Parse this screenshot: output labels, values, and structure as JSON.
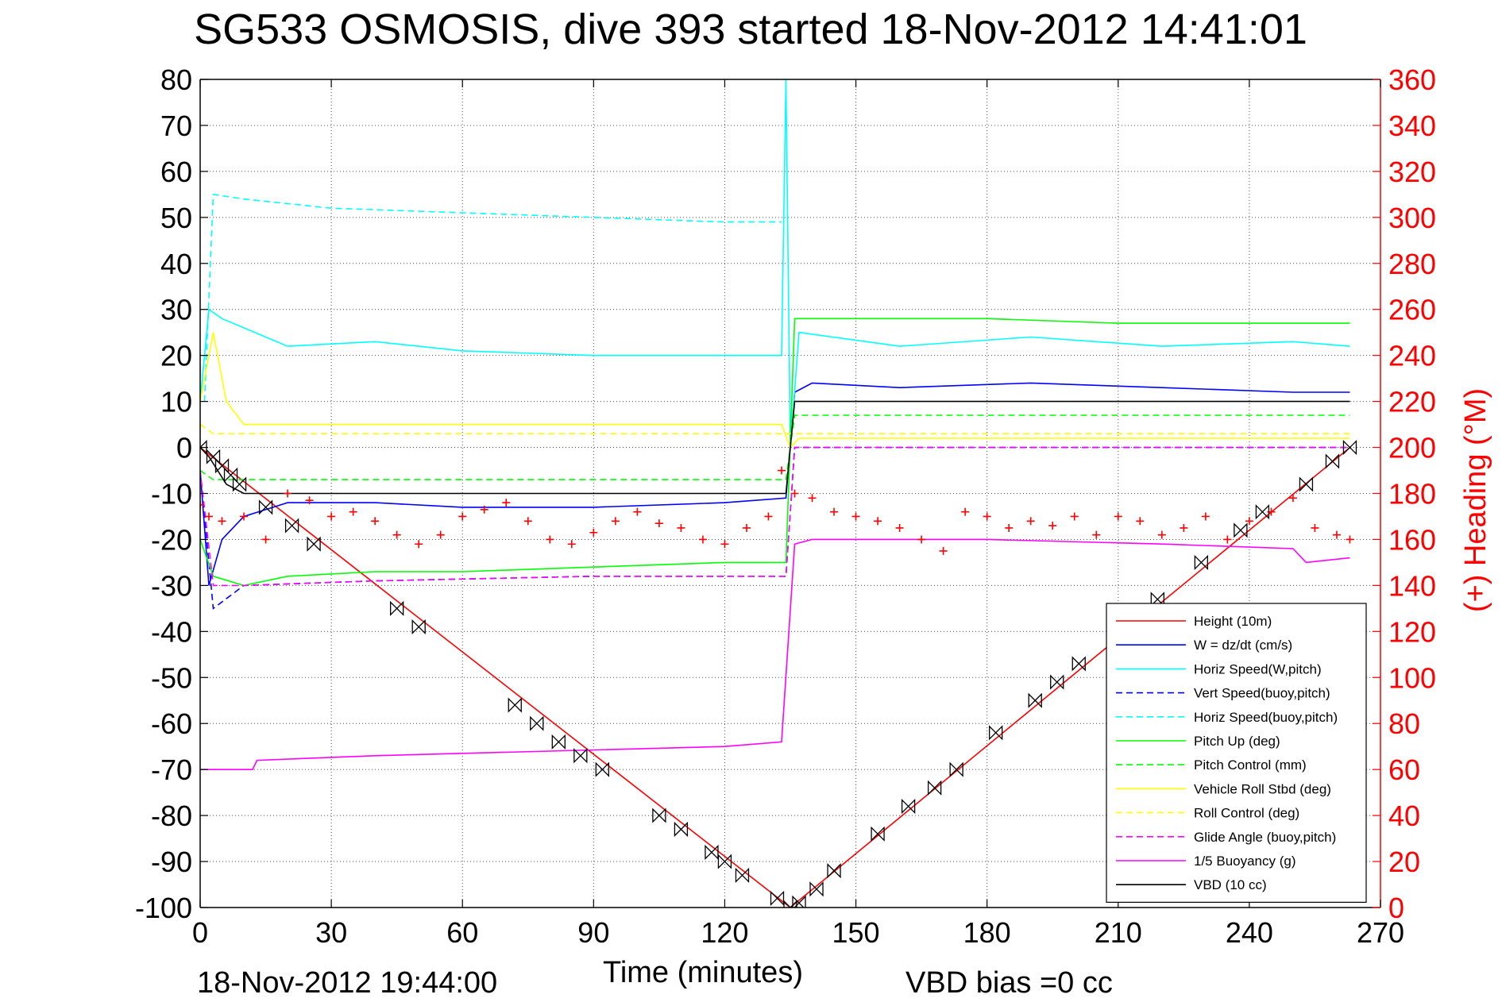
{
  "chart_data": {
    "type": "line",
    "title": "SG533 OSMOSIS, dive 393 started 18-Nov-2012 14:41:01",
    "xlabel": "Time (minutes)",
    "ylabel": "",
    "y2label": "(+) Heading (°M)",
    "xlim": [
      0,
      270
    ],
    "ylim": [
      -100,
      80
    ],
    "y2lim": [
      0,
      360
    ],
    "xticks": [
      "0",
      "30",
      "60",
      "90",
      "120",
      "150",
      "180",
      "210",
      "240",
      "270"
    ],
    "yticks": [
      "80",
      "70",
      "60",
      "50",
      "40",
      "30",
      "20",
      "10",
      "0",
      "-10",
      "-20",
      "-30",
      "-40",
      "-50",
      "-60",
      "-70",
      "-80",
      "-90",
      "-100"
    ],
    "y2ticks": [
      "360",
      "340",
      "320",
      "300",
      "280",
      "260",
      "240",
      "220",
      "200",
      "180",
      "160",
      "140",
      "120",
      "100",
      "80",
      "60",
      "40",
      "20",
      "0"
    ],
    "grid": true,
    "legend_position": "bottom-right",
    "footer_left": "18-Nov-2012 19:44:00",
    "footer_right": "VBD bias =0 cc",
    "colors": {
      "red": "#ff0000",
      "blue": "#0000ff",
      "cyan": "#00ffff",
      "green": "#00ff00",
      "yellow": "#ffff00",
      "magenta": "#ff00ff",
      "black": "#000000"
    },
    "series": [
      {
        "name": "Height (10m)",
        "color": "#ff0000",
        "style": "solid",
        "x": [
          0,
          135,
          263
        ],
        "y": [
          0,
          -100,
          0
        ]
      },
      {
        "name": "W = dz/dt (cm/s)",
        "color": "#0000ff",
        "style": "solid",
        "x": [
          0,
          2,
          5,
          10,
          20,
          40,
          60,
          90,
          120,
          134,
          136,
          140,
          160,
          190,
          220,
          250,
          263
        ],
        "y": [
          -5,
          -30,
          -20,
          -15,
          -12,
          -12,
          -13,
          -13,
          -12,
          -11,
          12,
          14,
          13,
          14,
          13,
          12,
          12
        ]
      },
      {
        "name": "Horiz Speed(W,pitch)",
        "color": "#00ffff",
        "style": "solid",
        "x": [
          0,
          2,
          5,
          10,
          20,
          40,
          60,
          90,
          120,
          133,
          134,
          135,
          137,
          160,
          190,
          220,
          250,
          263
        ],
        "y": [
          10,
          30,
          28,
          26,
          22,
          23,
          21,
          20,
          20,
          20,
          80,
          0,
          25,
          22,
          24,
          22,
          23,
          22
        ]
      },
      {
        "name": "Vert Speed(buoy,pitch)",
        "color": "#0000ff",
        "style": "dashed",
        "x": [
          0,
          3,
          10,
          40,
          90,
          134,
          136,
          263
        ],
        "y": [
          -5,
          -35,
          -30,
          -29,
          -28,
          -28,
          0,
          0
        ]
      },
      {
        "name": "Horiz Speed(buoy,pitch)",
        "color": "#00ffff",
        "style": "dashed",
        "x": [
          1,
          3,
          10,
          30,
          60,
          90,
          120,
          133
        ],
        "y": [
          10,
          55,
          54,
          52,
          51,
          50,
          49,
          49
        ]
      },
      {
        "name": "Pitch Up (deg)",
        "color": "#00ff00",
        "style": "solid",
        "x": [
          0,
          3,
          10,
          20,
          40,
          60,
          90,
          120,
          134,
          136,
          150,
          180,
          210,
          240,
          263
        ],
        "y": [
          -20,
          -28,
          -30,
          -28,
          -27,
          -27,
          -26,
          -25,
          -25,
          28,
          28,
          28,
          27,
          27,
          27
        ]
      },
      {
        "name": "Pitch Control (mm)",
        "color": "#00ff00",
        "style": "dashed",
        "x": [
          0,
          3,
          134,
          136,
          263
        ],
        "y": [
          -5,
          -7,
          -7,
          7,
          7
        ]
      },
      {
        "name": "Vehicle Roll Stbd (deg)",
        "color": "#ffff00",
        "style": "solid",
        "x": [
          0,
          3,
          6,
          10,
          15,
          20,
          40,
          60,
          90,
          120,
          133,
          135,
          137,
          150,
          180,
          210,
          240,
          263
        ],
        "y": [
          10,
          25,
          10,
          5,
          5,
          5,
          5,
          5,
          5,
          5,
          5,
          0,
          2,
          2,
          2,
          2,
          2,
          2
        ]
      },
      {
        "name": "Roll Control (deg)",
        "color": "#ffff00",
        "style": "dashed",
        "x": [
          0,
          3,
          134,
          136,
          263
        ],
        "y": [
          5,
          3,
          3,
          3,
          3
        ]
      },
      {
        "name": "Glide Angle (buoy,pitch)",
        "color": "#ff00ff",
        "style": "dashed",
        "x": [
          0,
          3,
          10,
          40,
          90,
          134,
          136,
          263
        ],
        "y": [
          -5,
          -30,
          -30,
          -29,
          -28,
          -28,
          0,
          0
        ]
      },
      {
        "name": "1/5 Buoyancy (g)",
        "color": "#ff00ff",
        "style": "solid",
        "x": [
          0,
          12,
          13,
          40,
          80,
          120,
          133,
          136,
          140,
          180,
          220,
          250,
          253,
          263
        ],
        "y": [
          -70,
          -70,
          -68,
          -67,
          -66,
          -65,
          -64,
          -21,
          -20,
          -20,
          -21,
          -22,
          -25,
          -24
        ]
      },
      {
        "name": "VBD (10 cc)",
        "color": "#000000",
        "style": "solid",
        "x": [
          0,
          2,
          4,
          6,
          10,
          134,
          136,
          137,
          250,
          255,
          263
        ],
        "y": [
          0,
          -2,
          -5,
          -8,
          -10,
          -10,
          10,
          10,
          10,
          10,
          10
        ]
      }
    ],
    "heading": {
      "axis": "right",
      "color": "#ff0000",
      "marker": "+",
      "name": "(+) Heading (°M)",
      "x": [
        0,
        2,
        5,
        10,
        15,
        20,
        25,
        30,
        35,
        40,
        45,
        50,
        55,
        60,
        65,
        70,
        75,
        80,
        85,
        90,
        95,
        100,
        105,
        110,
        115,
        120,
        125,
        130,
        133,
        136,
        140,
        145,
        150,
        155,
        160,
        165,
        170,
        175,
        180,
        185,
        190,
        195,
        200,
        205,
        210,
        215,
        220,
        225,
        230,
        235,
        240,
        245,
        250,
        255,
        260,
        263
      ],
      "y": [
        175,
        170,
        168,
        170,
        160,
        180,
        177,
        170,
        172,
        168,
        162,
        158,
        162,
        170,
        173,
        176,
        168,
        160,
        158,
        163,
        168,
        172,
        167,
        165,
        160,
        158,
        165,
        170,
        190,
        180,
        178,
        172,
        170,
        168,
        165,
        160,
        155,
        172,
        170,
        165,
        168,
        166,
        170,
        162,
        170,
        168,
        162,
        165,
        170,
        160,
        168,
        172,
        178,
        165,
        162,
        160
      ]
    },
    "depth_markers": {
      "marker": "hourglass",
      "color": "#000000",
      "x": [
        0,
        3,
        5,
        7,
        9,
        15,
        21,
        26,
        45,
        50,
        72,
        77,
        82,
        87,
        92,
        105,
        110,
        117,
        120,
        124,
        132,
        135,
        137,
        141,
        145,
        155,
        162,
        168,
        173,
        182,
        191,
        196,
        201,
        219,
        229,
        238,
        243,
        253,
        259,
        263
      ],
      "y": [
        0,
        -2,
        -4,
        -6,
        -8,
        -13,
        -17,
        -21,
        -35,
        -39,
        -56,
        -60,
        -64,
        -67,
        -70,
        -80,
        -83,
        -88,
        -90,
        -93,
        -98,
        -100,
        -99,
        -96,
        -92,
        -84,
        -78,
        -74,
        -70,
        -62,
        -55,
        -51,
        -47,
        -33,
        -25,
        -18,
        -14,
        -8,
        -3,
        0
      ]
    }
  }
}
